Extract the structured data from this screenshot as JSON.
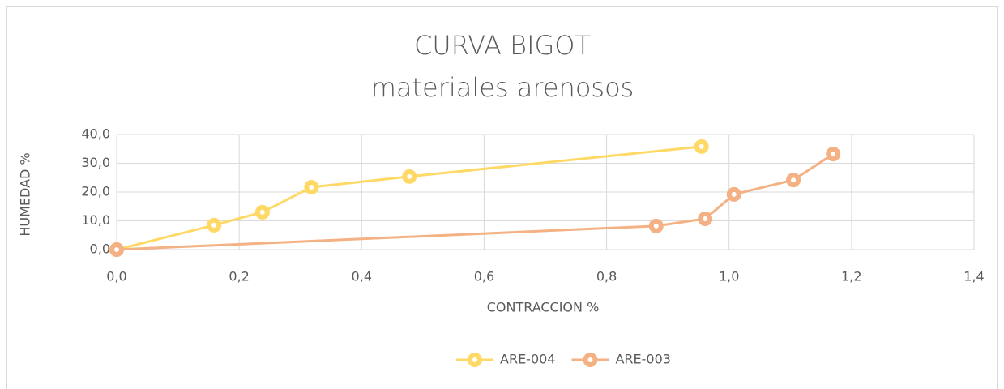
{
  "chart_data": {
    "type": "scatter",
    "title": "CURVA BIGOT",
    "subtitle": "materiales arenosos",
    "x_label": "CONTRACCION %",
    "y_label": "HUMEDAD %",
    "xlim": [
      0,
      1.4
    ],
    "ylim": [
      0,
      40
    ],
    "xticks": [
      {
        "value": 0,
        "label": "0,0"
      },
      {
        "value": 0.2,
        "label": "0,2"
      },
      {
        "value": 0.4,
        "label": "0,4"
      },
      {
        "value": 0.6,
        "label": "0,6"
      },
      {
        "value": 0.8,
        "label": "0,8"
      },
      {
        "value": 1.0,
        "label": "1,0"
      },
      {
        "value": 1.2,
        "label": "1,2"
      },
      {
        "value": 1.4,
        "label": "1,4"
      }
    ],
    "yticks": [
      {
        "value": 0,
        "label": "0,0"
      },
      {
        "value": 10,
        "label": "10,0"
      },
      {
        "value": 20,
        "label": "20,0"
      },
      {
        "value": 30,
        "label": "30,0"
      },
      {
        "value": 40,
        "label": "40,0"
      }
    ],
    "grid": true,
    "legend": "bottom",
    "series": [
      {
        "name": "ARE-004",
        "color": "#ffd966",
        "x": [
          0,
          0.159,
          0.238,
          0.318,
          0.478,
          0.955
        ],
        "values": [
          0,
          8.5,
          13.0,
          21.7,
          25.4,
          35.8
        ]
      },
      {
        "name": "ARE-003",
        "color": "#f4b183",
        "x": [
          0,
          0.881,
          0.961,
          1.008,
          1.105,
          1.17
        ],
        "values": [
          0,
          8.2,
          10.7,
          19.2,
          24.2,
          33.2
        ]
      }
    ]
  }
}
